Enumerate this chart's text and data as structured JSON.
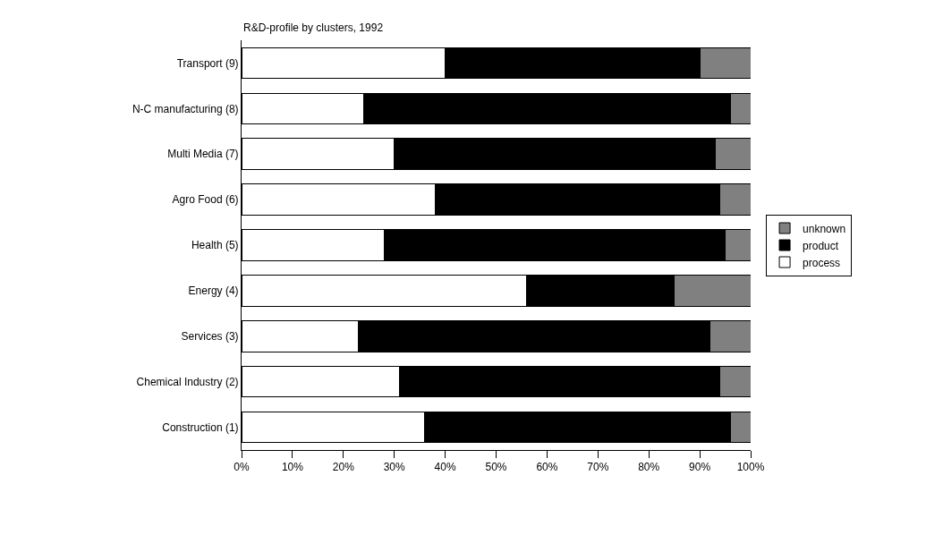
{
  "chart_data": {
    "type": "bar",
    "title": "R&D-profile by clusters, 1992",
    "orientation": "horizontal",
    "stacked": true,
    "categories": [
      "Transport (9)",
      "N-C manufacturing (8)",
      "Multi Media (7)",
      "Agro Food (6)",
      "Health (5)",
      "Energy (4)",
      "Services (3)",
      "Chemical Industry (2)",
      "Construction (1)"
    ],
    "series": [
      {
        "name": "process",
        "color": "#ffffff",
        "values": [
          40,
          24,
          30,
          38,
          28,
          56,
          23,
          31,
          36
        ]
      },
      {
        "name": "product",
        "color": "#000000",
        "values": [
          50,
          72,
          63,
          56,
          67,
          29,
          69,
          63,
          60
        ]
      },
      {
        "name": "unknown",
        "color": "#808080",
        "values": [
          10,
          4,
          7,
          6,
          5,
          15,
          8,
          6,
          4
        ]
      }
    ],
    "xlim": [
      0,
      100
    ],
    "xticks": [
      {
        "value": 0,
        "label": "0%"
      },
      {
        "value": 10,
        "label": "10%"
      },
      {
        "value": 20,
        "label": "20%"
      },
      {
        "value": 30,
        "label": "30%"
      },
      {
        "value": 40,
        "label": "40%"
      },
      {
        "value": 50,
        "label": "50%"
      },
      {
        "value": 60,
        "label": "60%"
      },
      {
        "value": 70,
        "label": "70%"
      },
      {
        "value": 80,
        "label": "80%"
      },
      {
        "value": 90,
        "label": "90%"
      },
      {
        "value": 100,
        "label": "100%"
      }
    ],
    "legend": "right"
  }
}
